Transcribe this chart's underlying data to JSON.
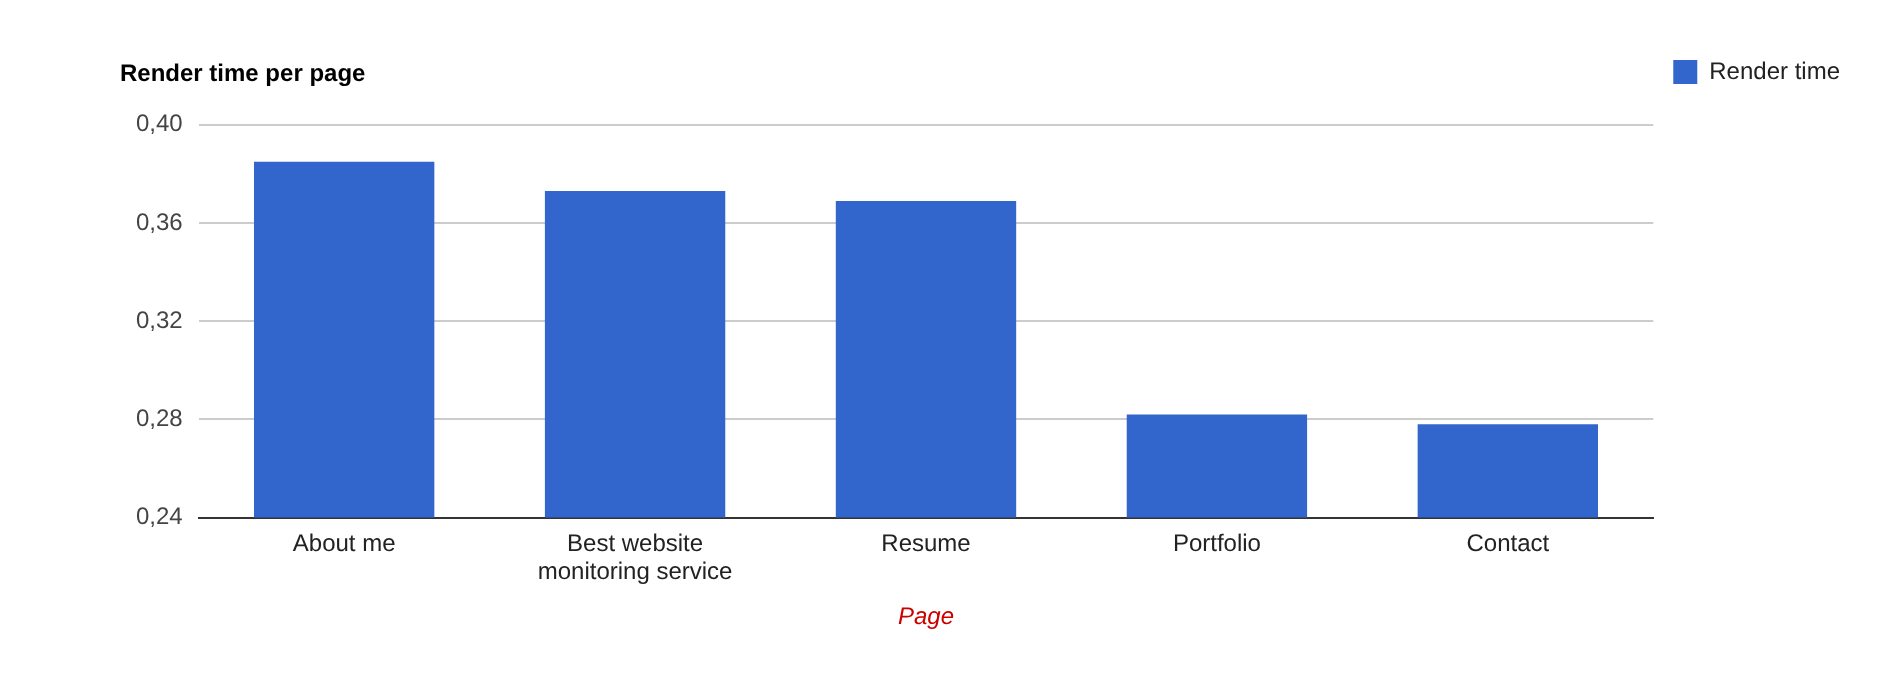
{
  "chart_data": {
    "type": "bar",
    "title": "Render time per page",
    "xlabel": "Page",
    "categories": [
      "About me",
      "Best website monitoring service",
      "Resume",
      "Portfolio",
      "Contact"
    ],
    "series": [
      {
        "name": "Render time",
        "color": "#3366cc",
        "values": [
          0.385,
          0.373,
          0.369,
          0.282,
          0.278
        ]
      }
    ],
    "ylim": [
      0.24,
      0.4
    ],
    "yticks": [
      {
        "value": 0.24,
        "label": "0,24"
      },
      {
        "value": 0.28,
        "label": "0,28"
      },
      {
        "value": 0.32,
        "label": "0,32"
      },
      {
        "value": 0.36,
        "label": "0,36"
      },
      {
        "value": 0.4,
        "label": "0,40"
      }
    ],
    "grid": "y",
    "legend": "top right"
  }
}
